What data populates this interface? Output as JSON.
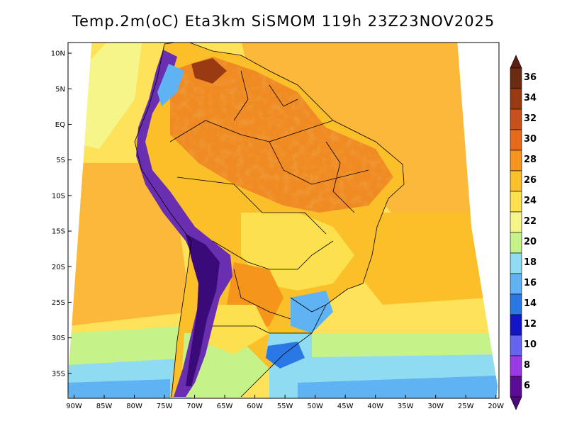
{
  "title": "Temp.2m(oC) Eta3km SiSMOM 119h 23Z23NOV2025",
  "map": {
    "variable": "2 m air temperature",
    "units": "oC",
    "lon_range": [
      -91,
      -19.5
    ],
    "lat_range": [
      -38.5,
      11.5
    ],
    "lat_ticks": [
      {
        "value": 10,
        "label": "10N"
      },
      {
        "value": 5,
        "label": "5N"
      },
      {
        "value": 0,
        "label": "EQ"
      },
      {
        "value": -5,
        "label": "5S"
      },
      {
        "value": -10,
        "label": "10S"
      },
      {
        "value": -15,
        "label": "15S"
      },
      {
        "value": -20,
        "label": "20S"
      },
      {
        "value": -25,
        "label": "25S"
      },
      {
        "value": -30,
        "label": "30S"
      },
      {
        "value": -35,
        "label": "35S"
      }
    ],
    "lon_ticks": [
      {
        "value": -90,
        "label": "90W"
      },
      {
        "value": -85,
        "label": "85W"
      },
      {
        "value": -80,
        "label": "80W"
      },
      {
        "value": -75,
        "label": "75W"
      },
      {
        "value": -70,
        "label": "70W"
      },
      {
        "value": -65,
        "label": "65W"
      },
      {
        "value": -60,
        "label": "60W"
      },
      {
        "value": -55,
        "label": "55W"
      },
      {
        "value": -50,
        "label": "50W"
      },
      {
        "value": -45,
        "label": "45W"
      },
      {
        "value": -40,
        "label": "40W"
      },
      {
        "value": -35,
        "label": "35W"
      },
      {
        "value": -30,
        "label": "30W"
      },
      {
        "value": -25,
        "label": "25W"
      },
      {
        "value": -20,
        "label": "20W"
      }
    ]
  },
  "colorbar": {
    "levels": [
      {
        "label": "36",
        "color": "#6b2a12"
      },
      {
        "label": "34",
        "color": "#9a3a13"
      },
      {
        "label": "32",
        "color": "#c8501a"
      },
      {
        "label": "30",
        "color": "#e66a1a"
      },
      {
        "label": "28",
        "color": "#f5951c"
      },
      {
        "label": "26",
        "color": "#fbbf2a"
      },
      {
        "label": "24",
        "color": "#fde04e"
      },
      {
        "label": "22",
        "color": "#f6f58a"
      },
      {
        "label": "20",
        "color": "#c6f28a"
      },
      {
        "label": "18",
        "color": "#8fdcf2"
      },
      {
        "label": "16",
        "color": "#5fb3f2"
      },
      {
        "label": "14",
        "color": "#2a78e6"
      },
      {
        "label": "12",
        "color": "#1414c8"
      },
      {
        "label": "10",
        "color": "#6464f0"
      },
      {
        "label": "8",
        "color": "#9a3ae6"
      },
      {
        "label": "6",
        "color": "#5a0c96"
      }
    ],
    "top_color": "#5a1f10",
    "bottom_color": "#4a0a78"
  },
  "colors": {
    "ocean_tropical": "#fbb83a",
    "ocean_midlat": "#fde25a",
    "ocean_south": "#c6f28a",
    "land_hot": "#f08a22",
    "land_warm": "#fbbf2a",
    "andes_cold": "#6a2fb0",
    "andes_core": "#3a0a78",
    "south_cool": "#5fb3f2",
    "coastline": "#000000"
  }
}
